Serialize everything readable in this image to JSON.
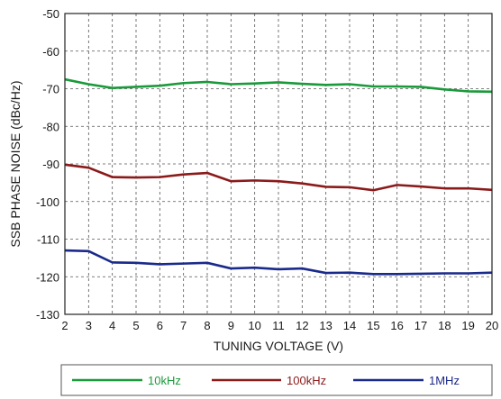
{
  "chart_data": {
    "type": "line",
    "title": "",
    "xlabel": "TUNING VOLTAGE (V)",
    "ylabel": "SSB PHASE NOISE (dBc/Hz)",
    "xlim": [
      2,
      20
    ],
    "ylim": [
      -130,
      -50
    ],
    "x_ticks": [
      "2",
      "3",
      "4",
      "5",
      "6",
      "7",
      "8",
      "9",
      "10",
      "11",
      "12",
      "13",
      "14",
      "15",
      "16",
      "17",
      "18",
      "19",
      "20"
    ],
    "y_ticks": [
      "-50",
      "-60",
      "-70",
      "-80",
      "-90",
      "-100",
      "-110",
      "-120",
      "-130"
    ],
    "grid": true,
    "legend_position": "bottom",
    "x": [
      2,
      3,
      4,
      5,
      6,
      7,
      8,
      9,
      10,
      11,
      12,
      13,
      14,
      15,
      16,
      17,
      18,
      19,
      20
    ],
    "series": [
      {
        "name": "10kHz",
        "color": "#1a9a3a",
        "values": [
          -67.5,
          -68.8,
          -69.8,
          -69.5,
          -69.2,
          -68.5,
          -68.2,
          -68.8,
          -68.6,
          -68.3,
          -68.7,
          -69.0,
          -68.8,
          -69.4,
          -69.4,
          -69.5,
          -70.2,
          -70.7,
          -70.8
        ]
      },
      {
        "name": "100kHz",
        "color": "#8b1a1a",
        "values": [
          -90.2,
          -91.0,
          -93.5,
          -93.6,
          -93.5,
          -92.8,
          -92.4,
          -94.6,
          -94.4,
          -94.6,
          -95.2,
          -96.1,
          -96.2,
          -97.0,
          -95.6,
          -96.0,
          -96.5,
          -96.5,
          -96.9
        ]
      },
      {
        "name": "1MHz",
        "color": "#1a2a8b",
        "values": [
          -113.0,
          -113.2,
          -116.2,
          -116.3,
          -116.7,
          -116.5,
          -116.3,
          -117.8,
          -117.6,
          -118.0,
          -117.8,
          -119.0,
          -118.9,
          -119.3,
          -119.3,
          -119.2,
          -119.1,
          -119.1,
          -118.9
        ]
      }
    ]
  }
}
